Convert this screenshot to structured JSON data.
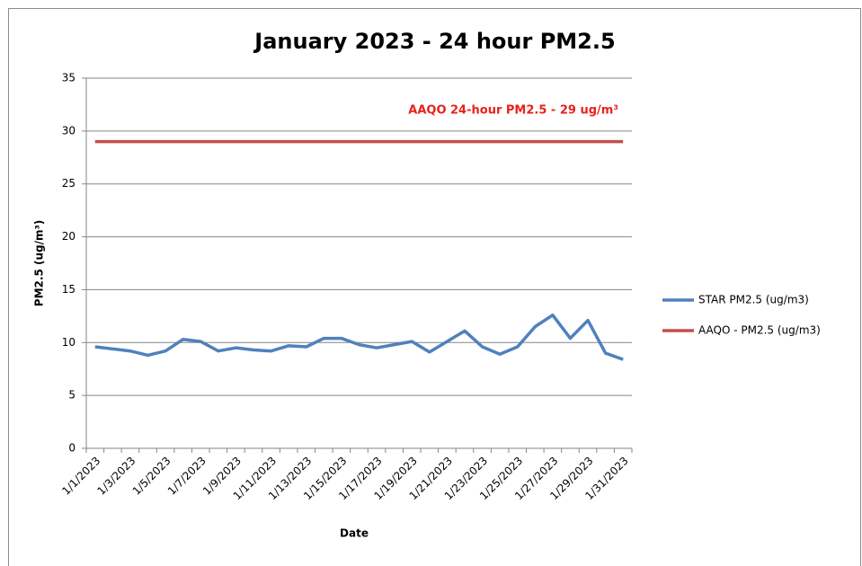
{
  "chart_data": {
    "type": "line",
    "title": "January 2023 - 24 hour PM2.5",
    "annotation": "AAQO 24-hour PM2.5 - 29 ug/m³",
    "x_label": "Date",
    "y_label": "PM2.5 (ug/m³)",
    "categories": [
      "1/1/2023",
      null,
      "1/3/2023",
      null,
      "1/5/2023",
      null,
      "1/7/2023",
      null,
      "1/9/2023",
      null,
      "1/11/2023",
      null,
      "1/13/2023",
      null,
      "1/15/2023",
      null,
      "1/17/2023",
      null,
      "1/19/2023",
      null,
      "1/21/2023",
      null,
      "1/23/2023",
      null,
      "1/25/2023",
      null,
      "1/27/2023",
      null,
      "1/29/2023",
      null,
      "1/31/2023"
    ],
    "series": [
      {
        "name": "STAR PM2.5 (ug/m3)",
        "color": "#4f81bd",
        "values": [
          9.6,
          9.4,
          9.2,
          8.8,
          9.2,
          10.3,
          10.1,
          9.2,
          9.5,
          9.3,
          9.2,
          9.7,
          9.6,
          10.4,
          10.4,
          9.8,
          9.5,
          9.8,
          10.1,
          9.1,
          10.1,
          11.1,
          9.6,
          8.9,
          9.6,
          11.5,
          12.6,
          10.4,
          12.1,
          9.0,
          8.4
        ]
      },
      {
        "name": "AAQO - PM2.5 (ug/m3)",
        "color": "#c0504d",
        "values": [
          29,
          29,
          29,
          29,
          29,
          29,
          29,
          29,
          29,
          29,
          29,
          29,
          29,
          29,
          29,
          29,
          29,
          29,
          29,
          29,
          29,
          29,
          29,
          29,
          29,
          29,
          29,
          29,
          29,
          29,
          29
        ]
      }
    ],
    "ylim": [
      0,
      35
    ],
    "yticks": [
      0,
      5,
      10,
      15,
      20,
      25,
      30,
      35
    ],
    "grid": true,
    "legend": "right"
  }
}
